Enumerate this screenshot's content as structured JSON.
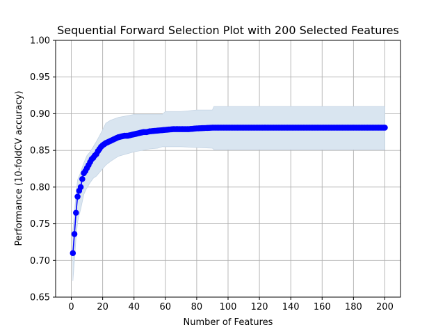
{
  "chart_data": {
    "type": "line",
    "title": "Sequential Forward Selection Plot with 200 Selected Features",
    "xlabel": "Number of Features",
    "ylabel": "Performance (10-foldCV accuracy)",
    "xlim": [
      -10,
      210
    ],
    "ylim": [
      0.65,
      1.0
    ],
    "x_ticks": [
      0,
      20,
      40,
      60,
      80,
      100,
      120,
      140,
      160,
      180,
      200
    ],
    "x_tick_labels": [
      "0",
      "20",
      "40",
      "60",
      "80",
      "100",
      "120",
      "140",
      "160",
      "180",
      "200"
    ],
    "y_ticks": [
      0.65,
      0.7,
      0.75,
      0.8,
      0.85,
      0.9,
      0.95,
      1.0
    ],
    "y_tick_labels": [
      "0.65",
      "0.70",
      "0.75",
      "0.80",
      "0.85",
      "0.90",
      "0.95",
      "1.00"
    ],
    "grid": true,
    "colors": {
      "line": "#0000ff",
      "band": "#d9e5f0",
      "band_edge": "#c4d4e4",
      "grid": "#b0b0b0"
    },
    "series": [
      {
        "x": [
          1,
          2,
          3,
          4,
          5,
          6,
          7,
          8,
          9,
          10,
          11,
          12,
          13,
          14,
          15,
          16,
          17,
          18,
          19,
          20,
          22,
          24,
          26,
          28,
          30,
          32,
          34,
          36,
          38,
          40,
          42,
          44,
          46,
          48,
          50,
          55,
          60,
          65,
          70,
          75,
          80,
          90,
          100,
          110,
          120,
          130,
          140,
          150,
          160,
          170,
          180,
          190,
          200
        ],
        "y": [
          0.71,
          0.736,
          0.765,
          0.787,
          0.795,
          0.8,
          0.811,
          0.819,
          0.822,
          0.826,
          0.83,
          0.834,
          0.838,
          0.84,
          0.843,
          0.845,
          0.849,
          0.852,
          0.855,
          0.857,
          0.86,
          0.862,
          0.864,
          0.866,
          0.868,
          0.869,
          0.87,
          0.87,
          0.871,
          0.872,
          0.873,
          0.874,
          0.875,
          0.875,
          0.876,
          0.877,
          0.878,
          0.879,
          0.879,
          0.879,
          0.88,
          0.881,
          0.881,
          0.881,
          0.881,
          0.881,
          0.881,
          0.881,
          0.881,
          0.881,
          0.881,
          0.881,
          0.881
        ]
      }
    ],
    "band": {
      "x": [
        1,
        2,
        3,
        4,
        5,
        6,
        7,
        8,
        9,
        10,
        12,
        14,
        16,
        18,
        20,
        22,
        25,
        30,
        35,
        40,
        45,
        50,
        55,
        58,
        60,
        70,
        80,
        90,
        91,
        100,
        120,
        140,
        160,
        180,
        200
      ],
      "upper": [
        0.741,
        0.765,
        0.79,
        0.81,
        0.815,
        0.82,
        0.827,
        0.833,
        0.838,
        0.843,
        0.848,
        0.855,
        0.862,
        0.87,
        0.878,
        0.887,
        0.891,
        0.895,
        0.897,
        0.899,
        0.899,
        0.899,
        0.899,
        0.899,
        0.903,
        0.903,
        0.905,
        0.905,
        0.91,
        0.91,
        0.91,
        0.91,
        0.91,
        0.91,
        0.91
      ],
      "lower": [
        0.672,
        0.7,
        0.73,
        0.752,
        0.762,
        0.77,
        0.78,
        0.79,
        0.795,
        0.799,
        0.806,
        0.812,
        0.815,
        0.82,
        0.825,
        0.83,
        0.835,
        0.842,
        0.845,
        0.848,
        0.85,
        0.852,
        0.853,
        0.855,
        0.855,
        0.855,
        0.854,
        0.853,
        0.851,
        0.851,
        0.851,
        0.851,
        0.851,
        0.851,
        0.851
      ]
    }
  }
}
